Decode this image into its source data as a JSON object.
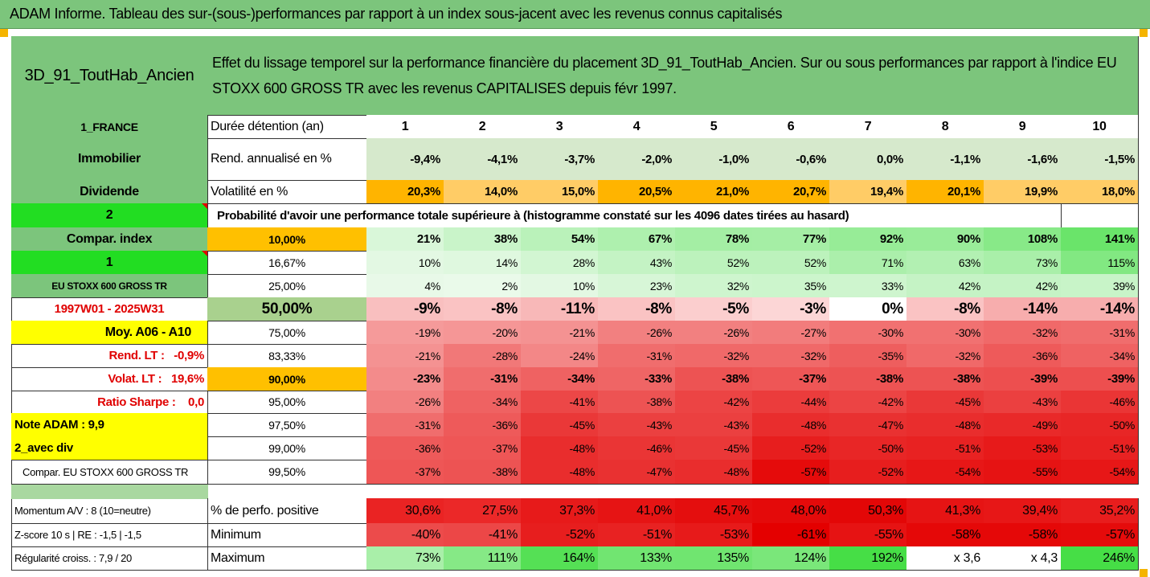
{
  "header": {
    "title": "ADAM Informe. Tableau des sur-(sous-)performances par rapport à un index sous-jacent avec les revenus connus capitalisés"
  },
  "table": {
    "name": "3D_91_ToutHab_Ancien",
    "description": "Effet du lissage temporel sur la performance financière du placement 3D_91_ToutHab_Ancien. Sur ou sous performances par rapport à l'indice EU STOXX 600 GROSS TR avec les revenus CAPITALISES depuis févr 1997.",
    "rows": [
      [
        "1_FRANCE",
        "Durée détention (an)",
        "1",
        "2",
        "3",
        "4",
        "5",
        "6",
        "7",
        "8",
        "9",
        "10"
      ],
      [
        "Immobilier",
        "Rend. annualisé en %",
        "-9,4%",
        "-4,1%",
        "-3,7%",
        "-2,0%",
        "-1,0%",
        "-0,6%",
        "0,0%",
        "-1,1%",
        "-1,6%",
        "-1,5%"
      ],
      [
        "Dividende",
        "Volatilité en %",
        "20,3%",
        "14,0%",
        "15,0%",
        "20,5%",
        "21,0%",
        "20,7%",
        "19,4%",
        "20,1%",
        "19,9%",
        "18,0%"
      ],
      [
        "2",
        "Probabilité d'avoir une performance totale supérieure à (histogramme constaté sur les 4096 dates tirées au hasard)"
      ],
      [
        "Compar. index",
        "10,00%",
        "21%",
        "38%",
        "54%",
        "67%",
        "78%",
        "77%",
        "92%",
        "90%",
        "108%",
        "141%"
      ],
      [
        "1",
        "16,67%",
        "10%",
        "14%",
        "28%",
        "43%",
        "52%",
        "52%",
        "71%",
        "63%",
        "73%",
        "115%"
      ],
      [
        "EU STOXX 600 GROSS TR",
        "25,00%",
        "4%",
        "2%",
        "10%",
        "23%",
        "32%",
        "35%",
        "33%",
        "42%",
        "42%",
        "39%"
      ],
      [
        "1997W01 - 2025W31",
        "50,00%",
        "-9%",
        "-8%",
        "-11%",
        "-8%",
        "-5%",
        "-3%",
        "0%",
        "-8%",
        "-14%",
        "-14%"
      ],
      [
        "Moy. A06 - A10",
        "75,00%",
        "-19%",
        "-20%",
        "-21%",
        "-26%",
        "-26%",
        "-27%",
        "-30%",
        "-30%",
        "-32%",
        "-31%"
      ],
      [
        "Rend. LT :   -0,9%",
        "83,33%",
        "-21%",
        "-28%",
        "-24%",
        "-31%",
        "-32%",
        "-32%",
        "-35%",
        "-32%",
        "-36%",
        "-34%"
      ],
      [
        "Volat. LT :   19,6%",
        "90,00%",
        "-23%",
        "-31%",
        "-34%",
        "-33%",
        "-38%",
        "-37%",
        "-38%",
        "-38%",
        "-39%",
        "-39%"
      ],
      [
        "Ratio Sharpe :    0,0",
        "95,00%",
        "-26%",
        "-34%",
        "-41%",
        "-38%",
        "-42%",
        "-44%",
        "-42%",
        "-45%",
        "-43%",
        "-46%"
      ],
      [
        "Note ADAM : 9,9",
        "97,50%",
        "-31%",
        "-36%",
        "-45%",
        "-43%",
        "-43%",
        "-48%",
        "-47%",
        "-48%",
        "-49%",
        "-50%"
      ],
      [
        "2_avec div",
        "99,00%",
        "-36%",
        "-37%",
        "-48%",
        "-46%",
        "-45%",
        "-52%",
        "-50%",
        "-51%",
        "-53%",
        "-51%"
      ],
      [
        "Compar. EU STOXX 600 GROSS TR",
        "99,50%",
        "-37%",
        "-38%",
        "-48%",
        "-47%",
        "-48%",
        "-57%",
        "-52%",
        "-54%",
        "-55%",
        "-54%"
      ],
      [
        "Momentum A/V : 8 (10=neutre)",
        "% de perfo. positive",
        "30,6%",
        "27,5%",
        "37,3%",
        "41,0%",
        "45,7%",
        "48,0%",
        "50,3%",
        "41,3%",
        "39,4%",
        "35,2%"
      ],
      [
        "Z-score 10 s | RE : -1,5 | -1,5",
        "Minimum",
        "-40%",
        "-41%",
        "-52%",
        "-51%",
        "-53%",
        "-61%",
        "-55%",
        "-58%",
        "-58%",
        "-57%"
      ],
      [
        "Régularité croiss. : 7,9 / 20",
        "Maximum",
        "73%",
        "111%",
        "164%",
        "133%",
        "135%",
        "124%",
        "192%",
        "x 3,6",
        "x 4,3",
        "246%"
      ]
    ]
  }
}
